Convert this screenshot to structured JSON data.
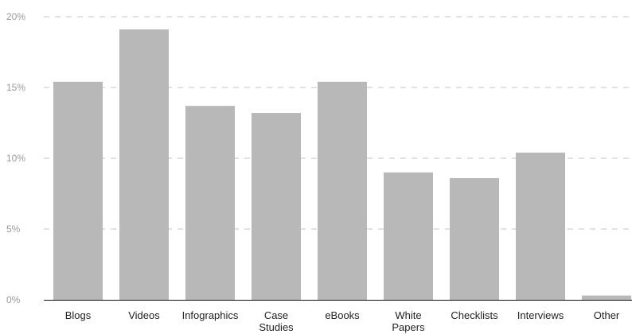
{
  "chart_data": {
    "type": "bar",
    "categories": [
      [
        "Blogs"
      ],
      [
        "Videos"
      ],
      [
        "Infographics"
      ],
      [
        "Case",
        "Studies"
      ],
      [
        "eBooks"
      ],
      [
        "White",
        "Papers"
      ],
      [
        "Checklists"
      ],
      [
        "Interviews"
      ],
      [
        "Other"
      ]
    ],
    "values": [
      15.4,
      19.1,
      13.7,
      13.2,
      15.4,
      9.0,
      8.6,
      10.4,
      0.3
    ],
    "ylim": [
      0,
      20
    ],
    "yticks": [
      0,
      5,
      10,
      15,
      20
    ],
    "ytick_labels": [
      "0%",
      "5%",
      "10%",
      "15%",
      "20%"
    ],
    "grid": true,
    "bar_color": "#b8b8b8",
    "title": "",
    "xlabel": "",
    "ylabel": ""
  }
}
